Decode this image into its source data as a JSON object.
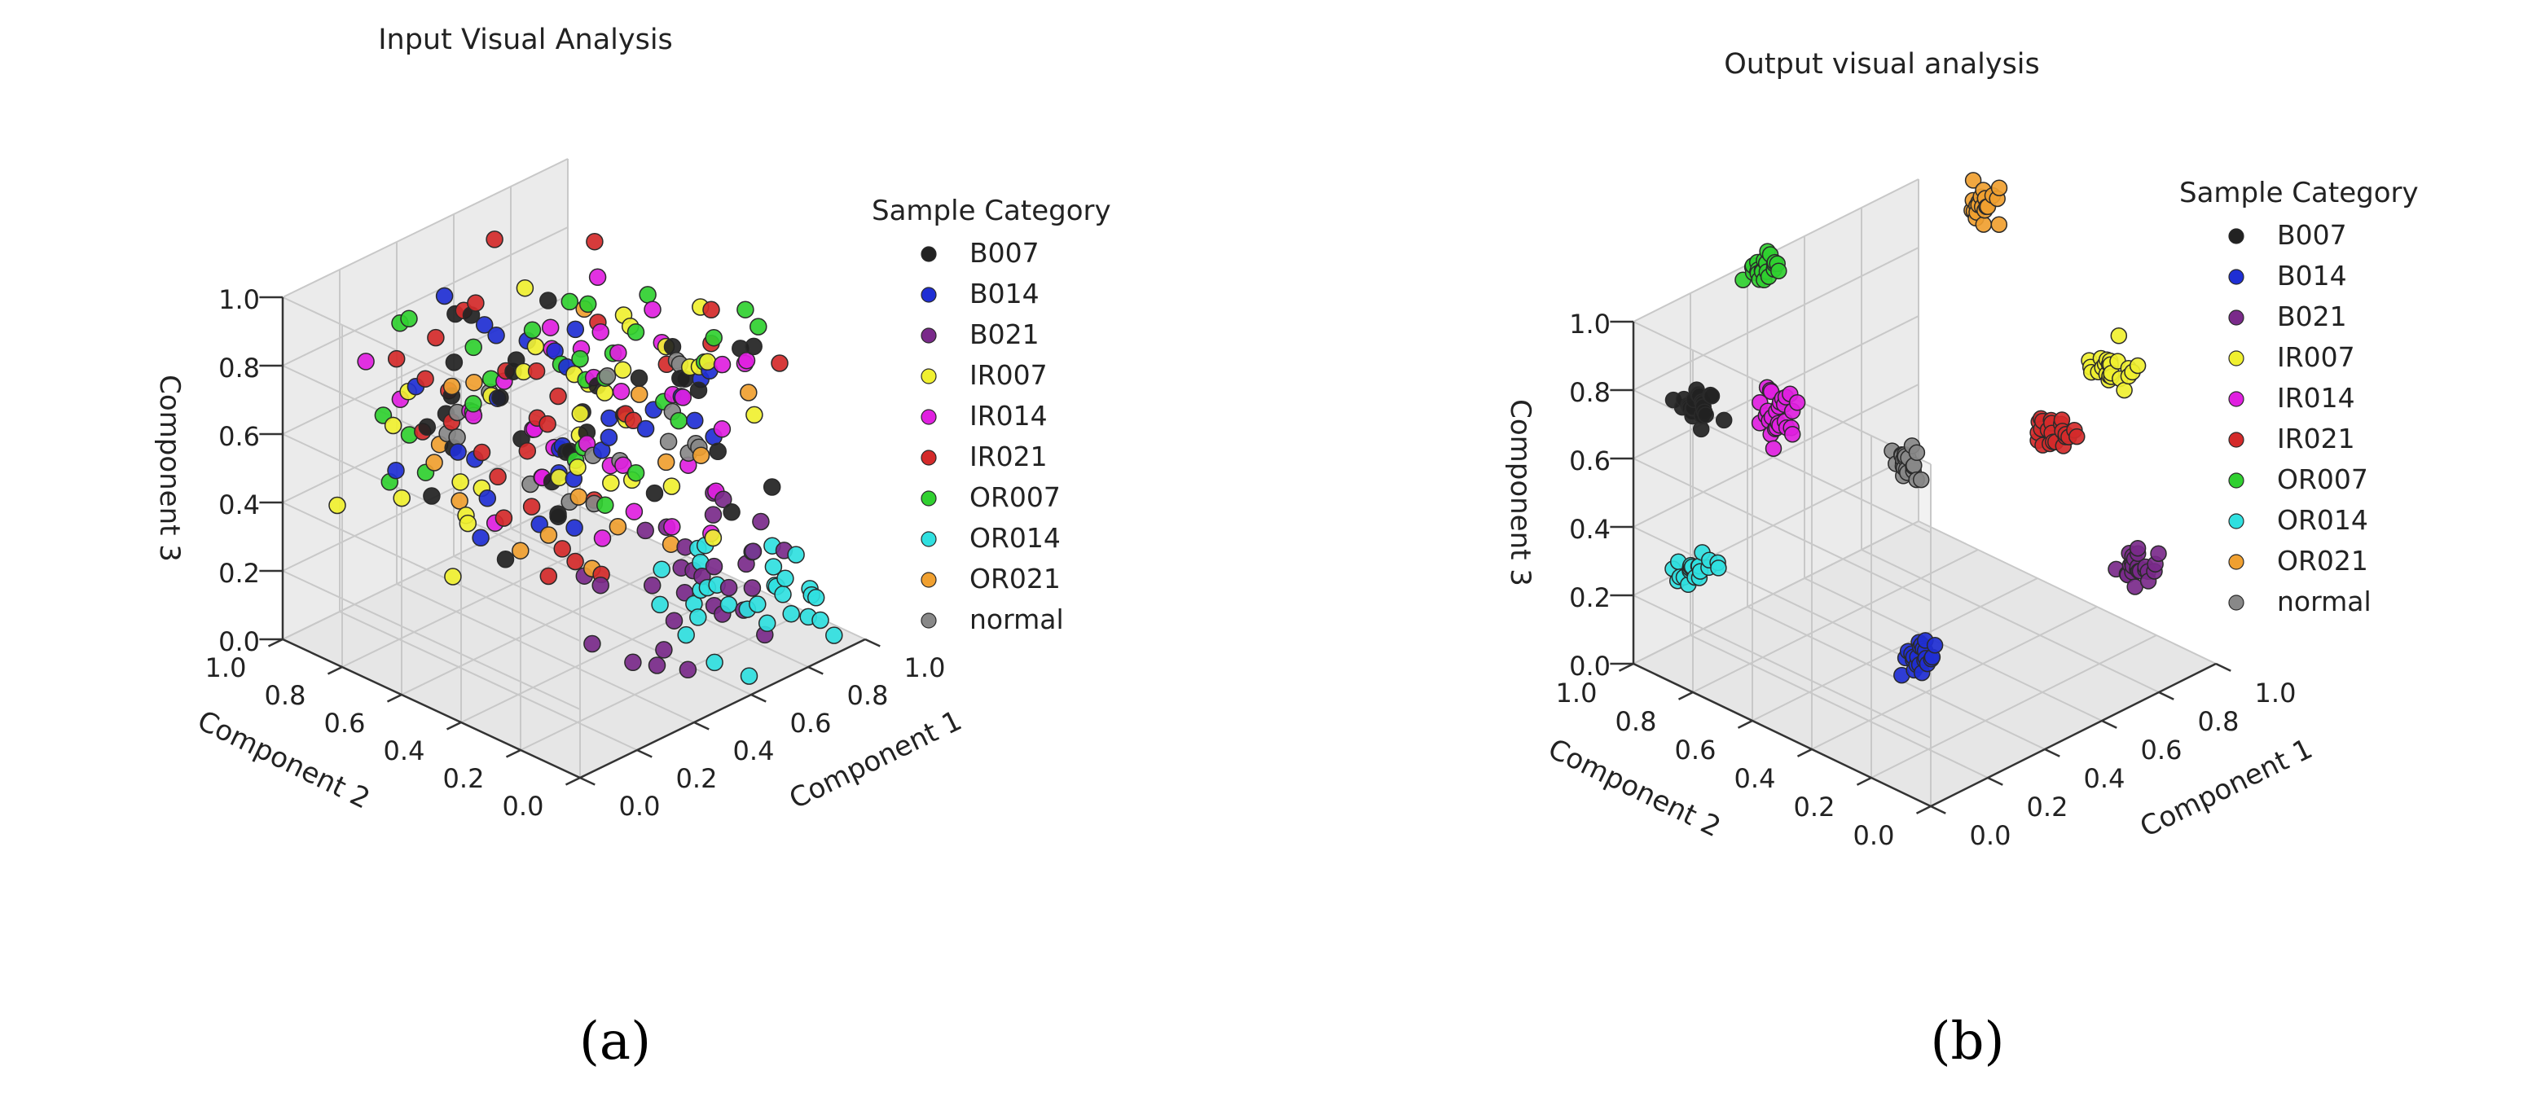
{
  "chart_data": [
    {
      "type": "scatter",
      "panel": "a",
      "title": "Input Visual Analysis",
      "caption": "(a)",
      "xlabel": "Component 1",
      "ylabel": "Component 2",
      "zlabel": "Component 3",
      "xlim": [
        0,
        1
      ],
      "ylim": [
        0,
        1
      ],
      "zlim": [
        0,
        1
      ],
      "x_ticks": [
        "0.0",
        "0.2",
        "0.4",
        "0.6",
        "0.8",
        "1.0"
      ],
      "y_ticks": [
        "0.0",
        "0.2",
        "0.4",
        "0.6",
        "0.8",
        "1.0"
      ],
      "z_ticks": [
        "0.0",
        "0.2",
        "0.4",
        "0.6",
        "0.8",
        "1.0"
      ],
      "legend_title": "Sample Category",
      "series": [
        {
          "name": "B007",
          "color": "#222222",
          "layout": "scattered",
          "center": [
            0.52,
            0.52,
            0.64
          ],
          "spread": [
            0.38,
            0.38,
            0.26
          ],
          "n": 34
        },
        {
          "name": "B014",
          "color": "#1f2fd4",
          "layout": "scattered",
          "center": [
            0.5,
            0.5,
            0.66
          ],
          "spread": [
            0.36,
            0.36,
            0.24
          ],
          "n": 30
        },
        {
          "name": "B021",
          "color": "#7a2a8a",
          "layout": "scattered",
          "center": [
            0.68,
            0.28,
            0.18
          ],
          "spread": [
            0.28,
            0.22,
            0.14
          ],
          "n": 30
        },
        {
          "name": "IR007",
          "color": "#f0f030",
          "layout": "scattered",
          "center": [
            0.5,
            0.55,
            0.58
          ],
          "spread": [
            0.45,
            0.42,
            0.3
          ],
          "n": 34
        },
        {
          "name": "IR014",
          "color": "#e020e0",
          "layout": "scattered",
          "center": [
            0.52,
            0.5,
            0.64
          ],
          "spread": [
            0.4,
            0.4,
            0.28
          ],
          "n": 36
        },
        {
          "name": "IR021",
          "color": "#d42a2a",
          "layout": "scattered",
          "center": [
            0.5,
            0.55,
            0.62
          ],
          "spread": [
            0.45,
            0.42,
            0.3
          ],
          "n": 32
        },
        {
          "name": "OR007",
          "color": "#30d030",
          "layout": "scattered",
          "center": [
            0.55,
            0.5,
            0.72
          ],
          "spread": [
            0.4,
            0.4,
            0.26
          ],
          "n": 30
        },
        {
          "name": "OR014",
          "color": "#30e0e0",
          "layout": "scattered",
          "center": [
            0.78,
            0.18,
            0.14
          ],
          "spread": [
            0.2,
            0.18,
            0.12
          ],
          "n": 32
        },
        {
          "name": "OR021",
          "color": "#f0a030",
          "layout": "scattered",
          "center": [
            0.5,
            0.5,
            0.6
          ],
          "spread": [
            0.38,
            0.38,
            0.24
          ],
          "n": 16
        },
        {
          "name": "normal",
          "color": "#888888",
          "layout": "scattered",
          "center": [
            0.55,
            0.55,
            0.62
          ],
          "spread": [
            0.3,
            0.3,
            0.2
          ],
          "n": 18
        }
      ]
    },
    {
      "type": "scatter",
      "panel": "b",
      "title": "Output visual analysis",
      "caption": "(b)",
      "xlabel": "Component 1",
      "ylabel": "Component 2",
      "zlabel": "Component 3",
      "xlim": [
        0,
        1
      ],
      "ylim": [
        0,
        1
      ],
      "zlim": [
        0,
        1
      ],
      "x_ticks": [
        "0.0",
        "0.2",
        "0.4",
        "0.6",
        "0.8",
        "1.0"
      ],
      "y_ticks": [
        "0.0",
        "0.2",
        "0.4",
        "0.6",
        "0.8",
        "1.0"
      ],
      "z_ticks": [
        "0.0",
        "0.2",
        "0.4",
        "0.6",
        "0.8",
        "1.0"
      ],
      "legend_title": "Sample Category",
      "series": [
        {
          "name": "B007",
          "color": "#222222",
          "layout": "cluster",
          "center": [
            0.08,
            0.85,
            0.78
          ],
          "spread": [
            0.05,
            0.05,
            0.05
          ],
          "n": 24
        },
        {
          "name": "B014",
          "color": "#1f2fd4",
          "layout": "cluster",
          "center": [
            0.5,
            0.52,
            0.02
          ],
          "spread": [
            0.05,
            0.05,
            0.05
          ],
          "n": 24
        },
        {
          "name": "B021",
          "color": "#7a2a8a",
          "layout": "cluster",
          "center": [
            0.96,
            0.2,
            0.22
          ],
          "spread": [
            0.05,
            0.05,
            0.06
          ],
          "n": 24
        },
        {
          "name": "IR007",
          "color": "#f0f030",
          "layout": "cluster",
          "center": [
            0.96,
            0.3,
            0.75
          ],
          "spread": [
            0.05,
            0.05,
            0.06
          ],
          "n": 24
        },
        {
          "name": "IR014",
          "color": "#e020e0",
          "layout": "cluster",
          "center": [
            0.25,
            0.75,
            0.72
          ],
          "spread": [
            0.05,
            0.05,
            0.08
          ],
          "n": 28
        },
        {
          "name": "IR021",
          "color": "#d42a2a",
          "layout": "cluster",
          "center": [
            0.8,
            0.35,
            0.62
          ],
          "spread": [
            0.05,
            0.05,
            0.06
          ],
          "n": 24
        },
        {
          "name": "OR007",
          "color": "#30d030",
          "layout": "cluster",
          "center": [
            0.26,
            0.82,
            1.12
          ],
          "spread": [
            0.05,
            0.05,
            0.04
          ],
          "n": 24
        },
        {
          "name": "OR014",
          "color": "#30e0e0",
          "layout": "cluster",
          "center": [
            0.13,
            0.92,
            0.26
          ],
          "spread": [
            0.08,
            0.04,
            0.04
          ],
          "n": 22
        },
        {
          "name": "OR021",
          "color": "#f0a030",
          "layout": "cluster",
          "center": [
            0.75,
            0.55,
            1.22
          ],
          "spread": [
            0.05,
            0.05,
            0.06
          ],
          "n": 22
        },
        {
          "name": "normal",
          "color": "#888888",
          "layout": "cluster",
          "center": [
            0.48,
            0.55,
            0.57
          ],
          "spread": [
            0.04,
            0.04,
            0.05
          ],
          "n": 22
        }
      ]
    }
  ]
}
